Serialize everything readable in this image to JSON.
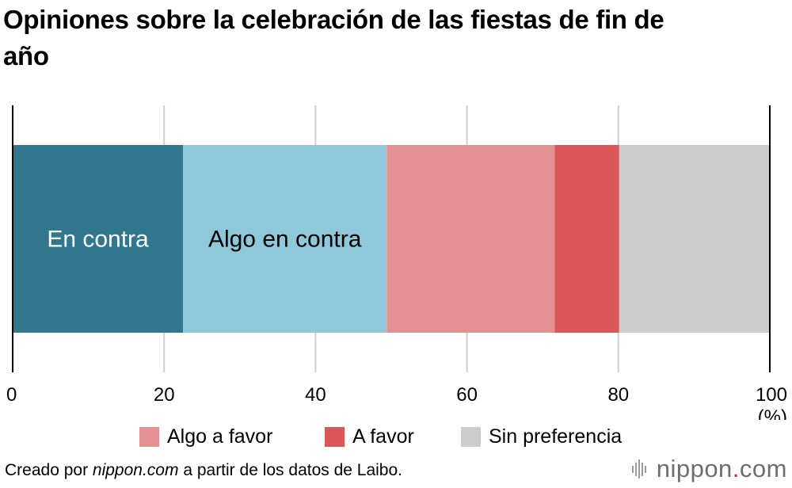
{
  "chart_data": {
    "type": "bar",
    "orientation": "horizontal",
    "stacked": true,
    "title": "Opiniones sobre la celebración de las fiestas de fin de año",
    "categories": [
      ""
    ],
    "series": [
      {
        "name": "En contra",
        "values": [
          22.5
        ],
        "color": "#31788f",
        "label": "En contra",
        "label_color": "#ffffff"
      },
      {
        "name": "Algo en contra",
        "values": [
          26.9
        ],
        "color": "#8fc8da",
        "label": "Algo en contra",
        "label_color": "#000000"
      },
      {
        "name": "Algo a favor",
        "values": [
          22.2
        ],
        "color": "#e59193",
        "label": "",
        "label_color": "#000000"
      },
      {
        "name": "A favor",
        "values": [
          8.5
        ],
        "color": "#db5657",
        "label": "",
        "label_color": "#000000"
      },
      {
        "name": "Sin preferencia",
        "values": [
          19.9
        ],
        "color": "#cccccc",
        "label": "",
        "label_color": "#000000"
      }
    ],
    "xlim": [
      0,
      100
    ],
    "xticks": [
      0,
      20,
      40,
      60,
      80,
      100
    ],
    "xtick_labels": [
      "0",
      "20",
      "40",
      "60",
      "80",
      "100"
    ],
    "xlabel": "(%)",
    "grid": true,
    "legend": [
      "Algo a favor",
      "A favor",
      "Sin preferencia"
    ],
    "legend_position": "bottom"
  },
  "legend_items": [
    {
      "label": "Algo a favor",
      "color": "#e59193"
    },
    {
      "label": "A favor",
      "color": "#db5657"
    },
    {
      "label": "Sin preferencia",
      "color": "#cccccc"
    }
  ],
  "source": {
    "prefix": "Creado por ",
    "site": "nippon.com",
    "suffix": " a partir de los datos de Laibo."
  },
  "logo": {
    "name": "nippon",
    "dot": ".",
    "tld": "com"
  }
}
